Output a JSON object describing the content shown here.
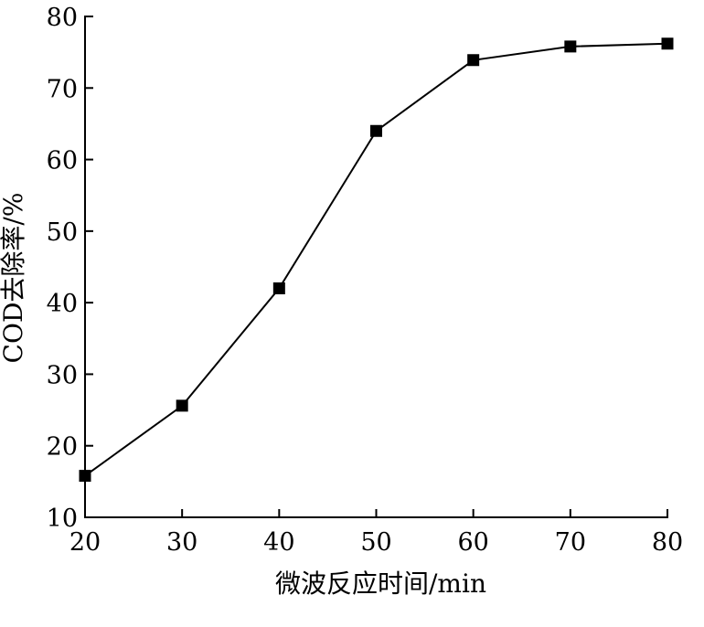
{
  "chart_data": {
    "type": "line",
    "title": "",
    "xlabel": "微波反应时间/min",
    "ylabel": "COD去除率/%",
    "x": [
      20,
      30,
      40,
      50,
      60,
      70,
      80
    ],
    "series": [
      {
        "values": [
          15.8,
          25.6,
          42.0,
          64.0,
          73.9,
          75.8,
          76.2
        ]
      }
    ],
    "xlim": [
      20,
      80
    ],
    "ylim": [
      10,
      80
    ],
    "xticks": [
      20,
      30,
      40,
      50,
      60,
      70,
      80
    ],
    "yticks": [
      10,
      20,
      30,
      40,
      50,
      60,
      70,
      80
    ],
    "xtick_labels": [
      "20",
      "30",
      "40",
      "50",
      "60",
      "70",
      "80"
    ],
    "ytick_labels": [
      "10",
      "20",
      "30",
      "40",
      "50",
      "60",
      "70",
      "80"
    ],
    "grid": false,
    "legend": "none",
    "marker": "square",
    "line_color": "#000000",
    "marker_color": "#000000"
  }
}
